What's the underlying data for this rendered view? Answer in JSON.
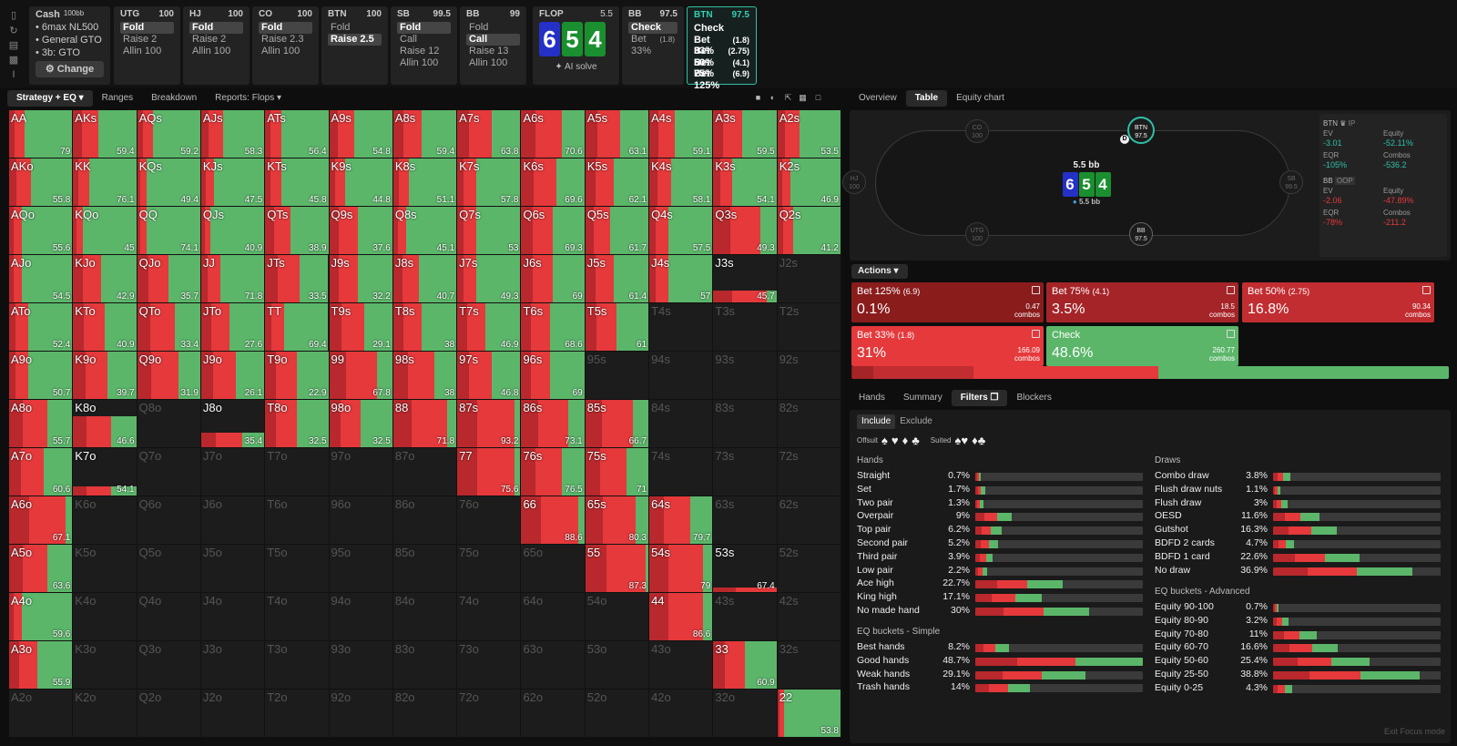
{
  "sidebar_icons": [
    "bookmark-icon",
    "refresh-icon",
    "save-icon",
    "gamepad-icon",
    "text-icon"
  ],
  "cash": {
    "title": "Cash",
    "stack": "100bb",
    "lines": [
      "6max NL500",
      "General GTO",
      "3b: GTO"
    ],
    "change_label": "Change"
  },
  "positions": [
    {
      "name": "UTG",
      "stack": "100",
      "actions": [
        {
          "label": "Fold",
          "sel": true
        },
        {
          "label": "Raise 2",
          "sel": false
        },
        {
          "label": "Allin 100",
          "sel": false
        }
      ]
    },
    {
      "name": "HJ",
      "stack": "100",
      "actions": [
        {
          "label": "Fold",
          "sel": true
        },
        {
          "label": "Raise 2",
          "sel": false
        },
        {
          "label": "Allin 100",
          "sel": false
        }
      ]
    },
    {
      "name": "CO",
      "stack": "100",
      "actions": [
        {
          "label": "Fold",
          "sel": true
        },
        {
          "label": "Raise 2.3",
          "sel": false
        },
        {
          "label": "Allin 100",
          "sel": false
        }
      ]
    },
    {
      "name": "BTN",
      "stack": "100",
      "actions": [
        {
          "label": "Fold",
          "sel": false
        },
        {
          "label": "Raise 2.5",
          "sel": true
        }
      ]
    },
    {
      "name": "SB",
      "stack": "99.5",
      "actions": [
        {
          "label": "Fold",
          "sel": true
        },
        {
          "label": "Call",
          "sel": false
        },
        {
          "label": "Raise 12",
          "sel": false
        },
        {
          "label": "Allin 100",
          "sel": false
        }
      ]
    },
    {
      "name": "BB",
      "stack": "99",
      "actions": [
        {
          "label": "Fold",
          "sel": false
        },
        {
          "label": "Call",
          "sel": true
        },
        {
          "label": "Raise 13",
          "sel": false
        },
        {
          "label": "Allin 100",
          "sel": false
        }
      ]
    }
  ],
  "flop": {
    "name": "FLOP",
    "pot": "5.5",
    "cards": [
      "6",
      "5",
      "4"
    ],
    "ai_label": "AI solve"
  },
  "bb_node": {
    "name": "BB",
    "stack": "97.5",
    "actions": [
      {
        "label": "Check",
        "size": "",
        "sel": true
      },
      {
        "label": "Bet 33%",
        "size": "(1.8)",
        "sel": false
      }
    ]
  },
  "btn_node": {
    "name": "BTN",
    "stack": "97.5",
    "actions": [
      {
        "label": "Check",
        "size": ""
      },
      {
        "label": "Bet 33%",
        "size": "(1.8)"
      },
      {
        "label": "Bet 50%",
        "size": "(2.75)"
      },
      {
        "label": "Bet 75%",
        "size": "(4.1)"
      },
      {
        "label": "Bet 125%",
        "size": "(6.9)"
      }
    ]
  },
  "left_tabs": [
    "Strategy + EQ",
    "Ranges",
    "Breakdown",
    "Reports: Flops"
  ],
  "colors": {
    "green": "#5bb66a",
    "red": "#e5393b",
    "darkred": "#b8282c",
    "bet125": "#8a1c1c",
    "bet75": "#a52428",
    "bet50": "#c12d31",
    "bet33": "#e5393b",
    "check": "#5bb66a",
    "card_blue": "#2430c6",
    "card_green": "#1a8f2f",
    "accent": "#2fc0a7"
  },
  "grid": {
    "ranks": [
      "A",
      "K",
      "Q",
      "J",
      "T",
      "9",
      "8",
      "7",
      "6",
      "5",
      "4",
      "3",
      "2"
    ],
    "ev": [
      [
        79,
        59.4,
        59.2,
        58.3,
        56.4,
        54.8,
        59.4,
        63.8,
        70.6,
        63.1,
        59.1,
        59.5,
        53.5
      ],
      [
        55.8,
        76.1,
        49.4,
        47.5,
        45.8,
        44.8,
        51.1,
        57.8,
        69.6,
        62.1,
        58.1,
        54.1,
        46.9
      ],
      [
        55.6,
        45,
        74.1,
        40.9,
        38.9,
        37.6,
        45.1,
        53,
        69.3,
        61.7,
        57.5,
        49.3,
        41.2
      ],
      [
        54.5,
        42.9,
        35.7,
        71.8,
        33.5,
        32.2,
        40.7,
        49.3,
        69,
        61.4,
        57,
        45.7,
        null
      ],
      [
        52.4,
        40.9,
        33.4,
        27.6,
        69.4,
        29.1,
        38,
        46.9,
        68.6,
        61,
        null,
        null,
        null
      ],
      [
        50.7,
        39.7,
        31.9,
        26.1,
        22.9,
        67.8,
        38,
        46.8,
        69,
        null,
        null,
        null,
        null
      ],
      [
        55.7,
        46.6,
        null,
        35.4,
        32.5,
        32.5,
        71.8,
        93.2,
        73.1,
        66.7,
        null,
        null,
        null
      ],
      [
        60.6,
        54.1,
        null,
        null,
        null,
        null,
        null,
        75.6,
        76.5,
        71,
        null,
        null,
        null
      ],
      [
        67.1,
        null,
        null,
        null,
        null,
        null,
        null,
        null,
        88.6,
        80.3,
        79.7,
        null,
        null
      ],
      [
        63.6,
        null,
        null,
        null,
        null,
        null,
        null,
        null,
        null,
        87.3,
        79,
        67.4,
        null
      ],
      [
        59.6,
        null,
        null,
        null,
        null,
        null,
        null,
        null,
        null,
        null,
        86.6,
        null,
        null
      ],
      [
        55.9,
        null,
        null,
        null,
        null,
        null,
        null,
        null,
        null,
        null,
        null,
        60.9,
        null
      ],
      [
        null,
        null,
        null,
        null,
        null,
        null,
        null,
        null,
        null,
        null,
        null,
        null,
        53.8
      ]
    ],
    "freq": [
      [
        1,
        1,
        1,
        1,
        1,
        1,
        1,
        1,
        1,
        1,
        1,
        1,
        1
      ],
      [
        1,
        1,
        1,
        1,
        1,
        1,
        1,
        1,
        1,
        1,
        1,
        1,
        1
      ],
      [
        1,
        1,
        1,
        1,
        1,
        1,
        1,
        1,
        1,
        1,
        1,
        1,
        1
      ],
      [
        1,
        1,
        1,
        1,
        1,
        1,
        1,
        1,
        1,
        1,
        1,
        0.25,
        0
      ],
      [
        1,
        1,
        1,
        1,
        1,
        1,
        1,
        1,
        1,
        1,
        0,
        0,
        0
      ],
      [
        1,
        1,
        1,
        1,
        1,
        1,
        1,
        1,
        1,
        0,
        0,
        0,
        0
      ],
      [
        1,
        0.65,
        0,
        0.3,
        1,
        1,
        1,
        1,
        1,
        1,
        0,
        0,
        0
      ],
      [
        1,
        0.2,
        0,
        0,
        0,
        0,
        0,
        1,
        1,
        1,
        0,
        0,
        0
      ],
      [
        1,
        0,
        0,
        0,
        0,
        0,
        0,
        0,
        1,
        1,
        1,
        0,
        0
      ],
      [
        1,
        0,
        0,
        0,
        0,
        0,
        0,
        0,
        0,
        1,
        1,
        0.1,
        0
      ],
      [
        1,
        0,
        0,
        0,
        0,
        0,
        0,
        0,
        0,
        0,
        1,
        0,
        0
      ],
      [
        1,
        0,
        0,
        0,
        0,
        0,
        0,
        0,
        0,
        0,
        0,
        1,
        0
      ],
      [
        0,
        0,
        0,
        0,
        0,
        0,
        0,
        0,
        0,
        0,
        0,
        0,
        1
      ]
    ],
    "green": [
      [
        0.75,
        0.6,
        0.75,
        0.65,
        0.75,
        0.6,
        0.55,
        0.45,
        0.35,
        0.45,
        0.6,
        0.55,
        0.65
      ],
      [
        0.65,
        0.75,
        0.85,
        0.8,
        0.75,
        0.75,
        0.75,
        0.7,
        0.45,
        0.55,
        0.65,
        0.7,
        0.8
      ],
      [
        0.8,
        0.85,
        0.85,
        0.85,
        0.6,
        0.55,
        0.8,
        0.7,
        0.5,
        0.6,
        0.7,
        0.25,
        0.75
      ],
      [
        0.8,
        0.55,
        0.5,
        0.7,
        0.45,
        0.55,
        0.6,
        0.7,
        0.5,
        0.55,
        0.7,
        0.15,
        0
      ],
      [
        0.7,
        0.5,
        0.4,
        0.55,
        0.7,
        0.45,
        0.55,
        0.55,
        0.55,
        0.5,
        0,
        0,
        0
      ],
      [
        0.7,
        0.45,
        0.35,
        0.45,
        0.5,
        0.25,
        0.35,
        0.45,
        0.55,
        0,
        0,
        0,
        0
      ],
      [
        0.4,
        0.4,
        0,
        0.35,
        0.5,
        0.5,
        0.15,
        0.1,
        0.25,
        0.25,
        0,
        0,
        0
      ],
      [
        0.45,
        0.4,
        0,
        0,
        0,
        0,
        0,
        0.1,
        0.35,
        0.35,
        0,
        0,
        0
      ],
      [
        0.1,
        0,
        0,
        0,
        0,
        0,
        0,
        0,
        0.1,
        0.2,
        0.35,
        0,
        0
      ],
      [
        0.4,
        0,
        0,
        0,
        0,
        0,
        0,
        0,
        0,
        0.05,
        0.15,
        0,
        0
      ],
      [
        0.8,
        0,
        0,
        0,
        0,
        0,
        0,
        0,
        0,
        0,
        0.15,
        0,
        0
      ],
      [
        0.55,
        0,
        0,
        0,
        0,
        0,
        0,
        0,
        0,
        0,
        0,
        0.5,
        0
      ],
      [
        0,
        0,
        0,
        0,
        0,
        0,
        0,
        0,
        0,
        0,
        0,
        0,
        0.9
      ]
    ]
  },
  "right_tabs": [
    "Overview",
    "Table",
    "Equity chart"
  ],
  "table": {
    "seats": [
      {
        "name": "CO",
        "stack": "100"
      },
      {
        "name": "BTN",
        "stack": "97.5"
      },
      {
        "name": "HJ",
        "stack": "100"
      },
      {
        "name": "SB",
        "stack": "99.5"
      },
      {
        "name": "UTG",
        "stack": "100"
      },
      {
        "name": "BB",
        "stack": "97.5"
      }
    ],
    "dealer": "D",
    "pot": "5.5 bb",
    "pot_sub": "5.5 bb",
    "cards": [
      "6",
      "5",
      "4"
    ]
  },
  "evbox": {
    "btn": {
      "title": "BTN",
      "tag": "IP",
      "ev_l": "EV",
      "ev": "-3.01",
      "eq_l": "Equity",
      "eq": "-52.11%",
      "eqr_l": "EQR",
      "eqr": "-105%",
      "co_l": "Combos",
      "co": "-536.2"
    },
    "bb": {
      "title": "BB",
      "tag": "OOP",
      "ev_l": "EV",
      "ev": "-2.06",
      "eq_l": "Equity",
      "eq": "-47.89%",
      "eqr_l": "EQR",
      "eqr": "-78%",
      "co_l": "Combos",
      "co": "-211.2"
    }
  },
  "actions_label": "Actions",
  "actions": [
    {
      "label": "Bet 125%",
      "size": "(6.9)",
      "pct": "0.1%",
      "combos": "0.47",
      "color": "#8a1c1c"
    },
    {
      "label": "Bet 75%",
      "size": "(4.1)",
      "pct": "3.5%",
      "combos": "18.5",
      "color": "#a52428"
    },
    {
      "label": "Bet 50%",
      "size": "(2.75)",
      "pct": "16.8%",
      "combos": "90.34",
      "color": "#c12d31"
    },
    {
      "label": "Bet 33%",
      "size": "(1.8)",
      "pct": "31%",
      "combos": "166.09",
      "color": "#e5393b"
    },
    {
      "label": "Check",
      "size": "",
      "pct": "48.6%",
      "combos": "260.77",
      "color": "#5bb66a"
    }
  ],
  "combos_word": "combos",
  "bottom_tabs": [
    "Hands",
    "Summary",
    "Filters",
    "Blockers"
  ],
  "include_tabs": [
    "Include",
    "Exclude"
  ],
  "offsuit_label": "Offsuit",
  "suited_label": "Suited",
  "hands_title": "Hands",
  "hands": [
    {
      "name": "Straight",
      "pct": "0.7%",
      "v": 0.007
    },
    {
      "name": "Set",
      "pct": "1.7%",
      "v": 0.017
    },
    {
      "name": "Two pair",
      "pct": "1.3%",
      "v": 0.013
    },
    {
      "name": "Overpair",
      "pct": "9%",
      "v": 0.09
    },
    {
      "name": "Top pair",
      "pct": "6.2%",
      "v": 0.062
    },
    {
      "name": "Second pair",
      "pct": "5.2%",
      "v": 0.052
    },
    {
      "name": "Third pair",
      "pct": "3.9%",
      "v": 0.039
    },
    {
      "name": "Low pair",
      "pct": "2.2%",
      "v": 0.022
    },
    {
      "name": "Ace high",
      "pct": "22.7%",
      "v": 0.227
    },
    {
      "name": "King high",
      "pct": "17.1%",
      "v": 0.171
    },
    {
      "name": "No made hand",
      "pct": "30%",
      "v": 0.3
    }
  ],
  "eqs_title": "EQ buckets - Simple",
  "eqs": [
    {
      "name": "Best hands",
      "pct": "8.2%",
      "v": 0.082
    },
    {
      "name": "Good hands",
      "pct": "48.7%",
      "v": 0.487
    },
    {
      "name": "Weak hands",
      "pct": "29.1%",
      "v": 0.291
    },
    {
      "name": "Trash hands",
      "pct": "14%",
      "v": 0.14
    }
  ],
  "draws_title": "Draws",
  "draws": [
    {
      "name": "Combo draw",
      "pct": "3.8%",
      "v": 0.038
    },
    {
      "name": "Flush draw nuts",
      "pct": "1.1%",
      "v": 0.011
    },
    {
      "name": "Flush draw",
      "pct": "3%",
      "v": 0.03
    },
    {
      "name": "OESD",
      "pct": "11.6%",
      "v": 0.116
    },
    {
      "name": "Gutshot",
      "pct": "16.3%",
      "v": 0.163
    },
    {
      "name": "BDFD 2 cards",
      "pct": "4.7%",
      "v": 0.047
    },
    {
      "name": "BDFD 1 card",
      "pct": "22.6%",
      "v": 0.226
    },
    {
      "name": "No draw",
      "pct": "36.9%",
      "v": 0.369
    }
  ],
  "eqa_title": "EQ buckets - Advanced",
  "eqa": [
    {
      "name": "Equity 90-100",
      "pct": "0.7%",
      "v": 0.007
    },
    {
      "name": "Equity 80-90",
      "pct": "3.2%",
      "v": 0.032
    },
    {
      "name": "Equity 70-80",
      "pct": "11%",
      "v": 0.11
    },
    {
      "name": "Equity 60-70",
      "pct": "16.6%",
      "v": 0.166
    },
    {
      "name": "Equity 50-60",
      "pct": "25.4%",
      "v": 0.254
    },
    {
      "name": "Equity 25-50",
      "pct": "38.8%",
      "v": 0.388
    },
    {
      "name": "Equity 0-25",
      "pct": "4.3%",
      "v": 0.043
    }
  ],
  "exit_focus": "Exit Focus mode"
}
